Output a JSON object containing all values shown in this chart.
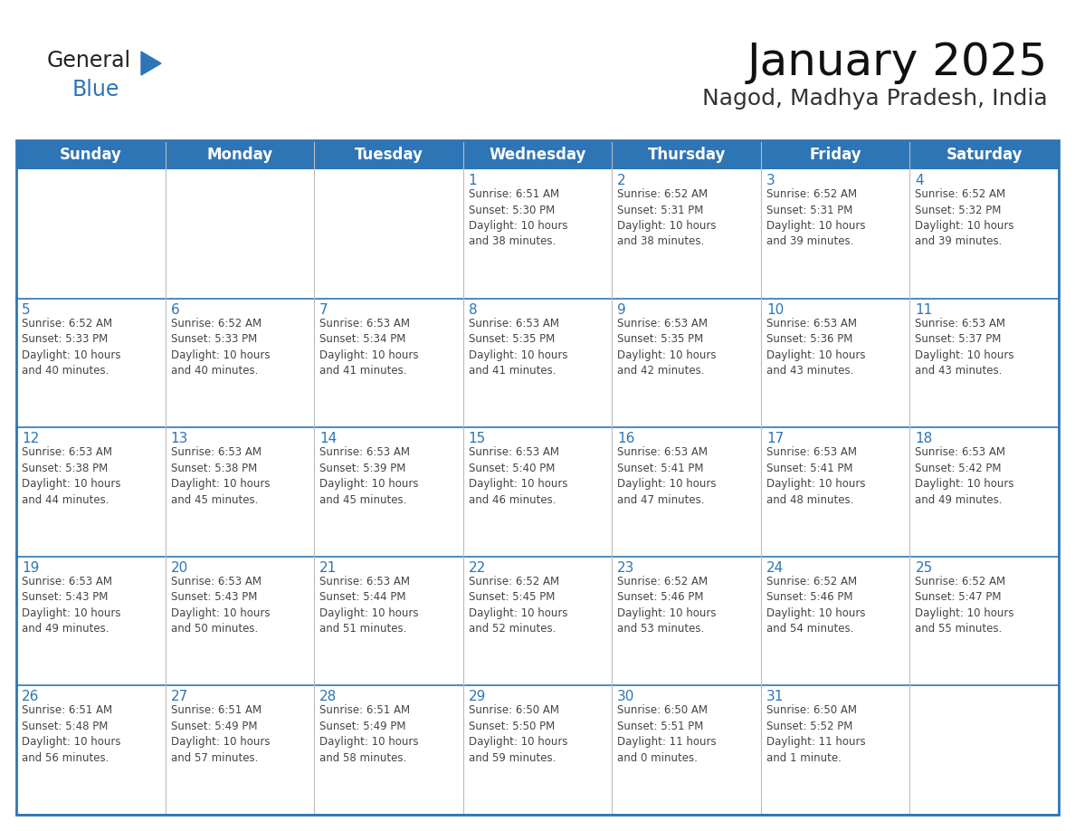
{
  "title": "January 2025",
  "subtitle": "Nagod, Madhya Pradesh, India",
  "header_bg": "#2E75B6",
  "header_text_color": "#FFFFFF",
  "cell_border_color": "#2E75B6",
  "row_border_color": "#2E75B6",
  "day_number_color": "#2E75B6",
  "text_color": "#444444",
  "background_color": "#FFFFFF",
  "days_of_week": [
    "Sunday",
    "Monday",
    "Tuesday",
    "Wednesday",
    "Thursday",
    "Friday",
    "Saturday"
  ],
  "calendar_data": [
    [
      "",
      "",
      "",
      "1\nSunrise: 6:51 AM\nSunset: 5:30 PM\nDaylight: 10 hours\nand 38 minutes.",
      "2\nSunrise: 6:52 AM\nSunset: 5:31 PM\nDaylight: 10 hours\nand 38 minutes.",
      "3\nSunrise: 6:52 AM\nSunset: 5:31 PM\nDaylight: 10 hours\nand 39 minutes.",
      "4\nSunrise: 6:52 AM\nSunset: 5:32 PM\nDaylight: 10 hours\nand 39 minutes."
    ],
    [
      "5\nSunrise: 6:52 AM\nSunset: 5:33 PM\nDaylight: 10 hours\nand 40 minutes.",
      "6\nSunrise: 6:52 AM\nSunset: 5:33 PM\nDaylight: 10 hours\nand 40 minutes.",
      "7\nSunrise: 6:53 AM\nSunset: 5:34 PM\nDaylight: 10 hours\nand 41 minutes.",
      "8\nSunrise: 6:53 AM\nSunset: 5:35 PM\nDaylight: 10 hours\nand 41 minutes.",
      "9\nSunrise: 6:53 AM\nSunset: 5:35 PM\nDaylight: 10 hours\nand 42 minutes.",
      "10\nSunrise: 6:53 AM\nSunset: 5:36 PM\nDaylight: 10 hours\nand 43 minutes.",
      "11\nSunrise: 6:53 AM\nSunset: 5:37 PM\nDaylight: 10 hours\nand 43 minutes."
    ],
    [
      "12\nSunrise: 6:53 AM\nSunset: 5:38 PM\nDaylight: 10 hours\nand 44 minutes.",
      "13\nSunrise: 6:53 AM\nSunset: 5:38 PM\nDaylight: 10 hours\nand 45 minutes.",
      "14\nSunrise: 6:53 AM\nSunset: 5:39 PM\nDaylight: 10 hours\nand 45 minutes.",
      "15\nSunrise: 6:53 AM\nSunset: 5:40 PM\nDaylight: 10 hours\nand 46 minutes.",
      "16\nSunrise: 6:53 AM\nSunset: 5:41 PM\nDaylight: 10 hours\nand 47 minutes.",
      "17\nSunrise: 6:53 AM\nSunset: 5:41 PM\nDaylight: 10 hours\nand 48 minutes.",
      "18\nSunrise: 6:53 AM\nSunset: 5:42 PM\nDaylight: 10 hours\nand 49 minutes."
    ],
    [
      "19\nSunrise: 6:53 AM\nSunset: 5:43 PM\nDaylight: 10 hours\nand 49 minutes.",
      "20\nSunrise: 6:53 AM\nSunset: 5:43 PM\nDaylight: 10 hours\nand 50 minutes.",
      "21\nSunrise: 6:53 AM\nSunset: 5:44 PM\nDaylight: 10 hours\nand 51 minutes.",
      "22\nSunrise: 6:52 AM\nSunset: 5:45 PM\nDaylight: 10 hours\nand 52 minutes.",
      "23\nSunrise: 6:52 AM\nSunset: 5:46 PM\nDaylight: 10 hours\nand 53 minutes.",
      "24\nSunrise: 6:52 AM\nSunset: 5:46 PM\nDaylight: 10 hours\nand 54 minutes.",
      "25\nSunrise: 6:52 AM\nSunset: 5:47 PM\nDaylight: 10 hours\nand 55 minutes."
    ],
    [
      "26\nSunrise: 6:51 AM\nSunset: 5:48 PM\nDaylight: 10 hours\nand 56 minutes.",
      "27\nSunrise: 6:51 AM\nSunset: 5:49 PM\nDaylight: 10 hours\nand 57 minutes.",
      "28\nSunrise: 6:51 AM\nSunset: 5:49 PM\nDaylight: 10 hours\nand 58 minutes.",
      "29\nSunrise: 6:50 AM\nSunset: 5:50 PM\nDaylight: 10 hours\nand 59 minutes.",
      "30\nSunrise: 6:50 AM\nSunset: 5:51 PM\nDaylight: 11 hours\nand 0 minutes.",
      "31\nSunrise: 6:50 AM\nSunset: 5:52 PM\nDaylight: 11 hours\nand 1 minute.",
      ""
    ]
  ],
  "logo_text_general": "General",
  "logo_text_blue": "Blue",
  "logo_color_general": "#222222",
  "logo_color_blue": "#2E75B6",
  "logo_triangle_color": "#2E75B6",
  "title_fontsize": 36,
  "subtitle_fontsize": 18,
  "dow_fontsize": 12,
  "day_num_fontsize": 11,
  "cell_text_fontsize": 8.5
}
